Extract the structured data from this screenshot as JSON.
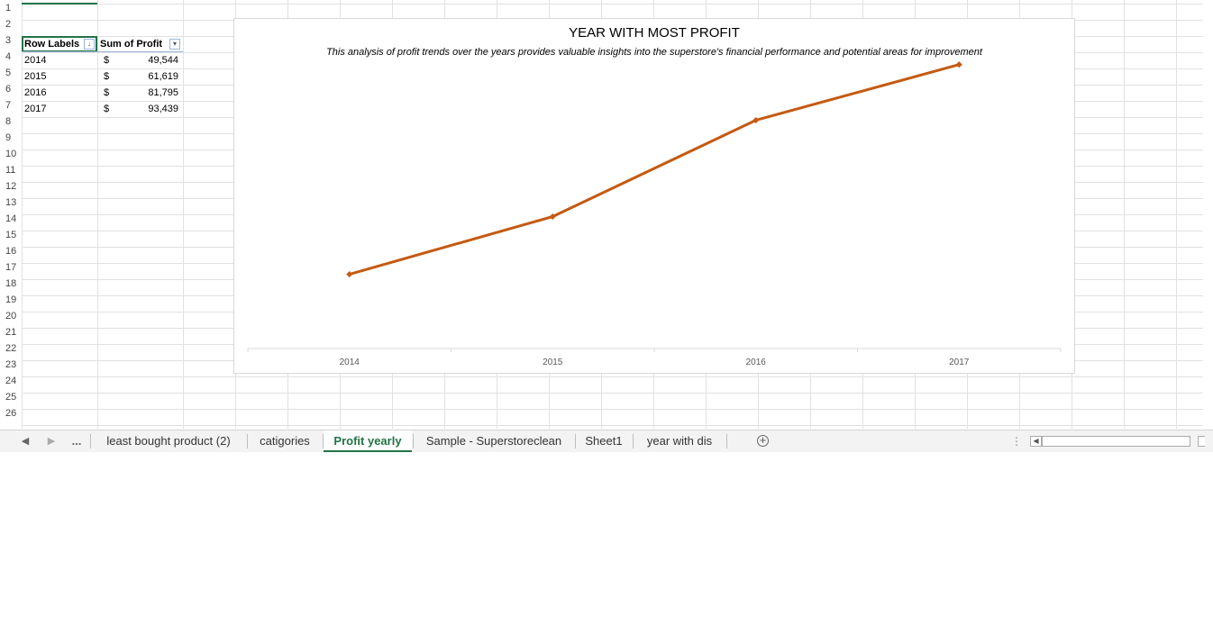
{
  "grid": {
    "row_numbers": [
      "1",
      "2",
      "3",
      "4",
      "5",
      "6",
      "7",
      "8",
      "9",
      "10",
      "11",
      "12",
      "13",
      "14",
      "15",
      "16",
      "17",
      "18",
      "19",
      "20",
      "21",
      "22",
      "23",
      "24",
      "25",
      "26"
    ]
  },
  "pivot": {
    "header_row_labels": "Row Labels",
    "header_sum": "Sum of Profit",
    "rows": [
      {
        "label": "2014",
        "currency": "$",
        "value": "49,544"
      },
      {
        "label": "2015",
        "currency": "$",
        "value": "61,619"
      },
      {
        "label": "2016",
        "currency": "$",
        "value": "81,795"
      },
      {
        "label": "2017",
        "currency": "$",
        "value": "93,439"
      }
    ]
  },
  "chart_data": {
    "type": "line",
    "title": "YEAR WITH MOST PROFIT",
    "subtitle": "This analysis of profit trends over the years provides valuable insights into the superstore's financial performance and potential areas for improvement",
    "categories": [
      "2014",
      "2015",
      "2016",
      "2017"
    ],
    "series": [
      {
        "values": [
          49544,
          61619,
          81795,
          93439
        ],
        "color": "#C55A11"
      }
    ],
    "y_axis_visible": false,
    "grid": false,
    "legend": "none"
  },
  "tabs": {
    "more": "...",
    "items": [
      {
        "label": "least bought product (2)",
        "active": false
      },
      {
        "label": "catigories",
        "active": false
      },
      {
        "label": "Profit yearly",
        "active": true
      },
      {
        "label": "Sample - Superstoreclean",
        "active": false
      },
      {
        "label": "Sheet1",
        "active": false
      },
      {
        "label": "year with dis",
        "active": false
      }
    ],
    "add_symbol": "+",
    "options_symbol": "⋮"
  },
  "icons": {
    "nav_prev": "triangle-left-icon",
    "nav_next": "triangle-right-icon",
    "sort": "sort-descending-icon",
    "filter": "dropdown-arrow-icon",
    "add_sheet": "plus-circle-icon"
  }
}
